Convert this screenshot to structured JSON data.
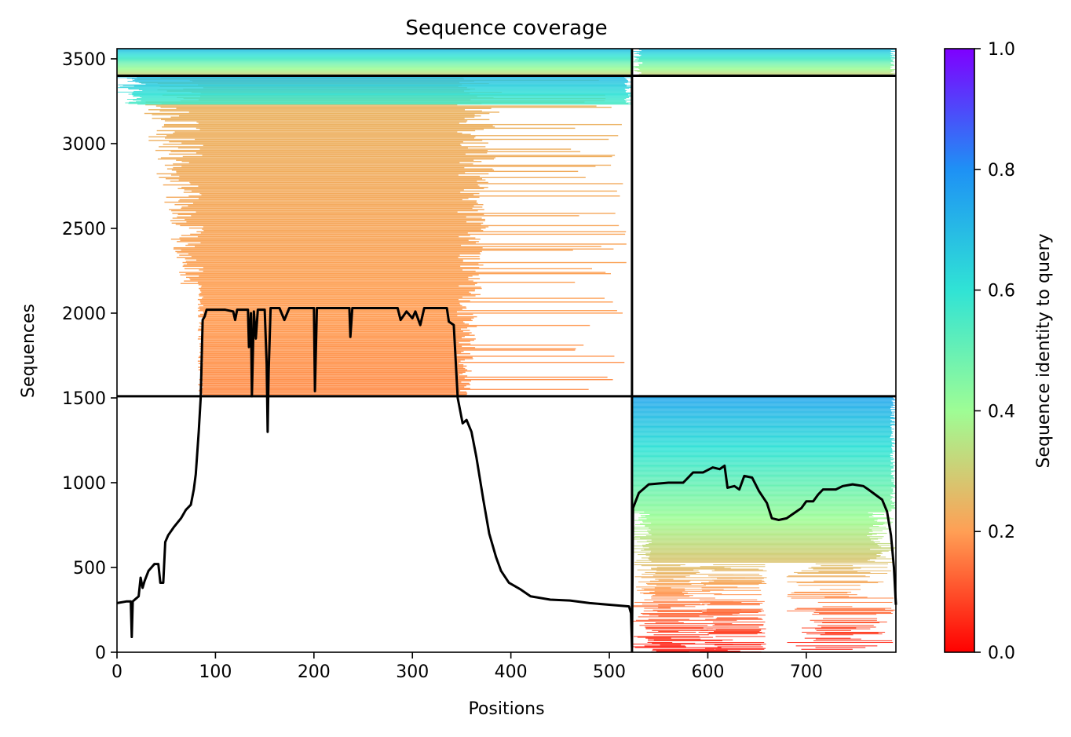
{
  "chart_data": {
    "type": "heatmap",
    "title": "Sequence coverage",
    "xlabel": "Positions",
    "ylabel": "Sequences",
    "xlim": [
      0,
      791
    ],
    "ylim": [
      0,
      3560
    ],
    "x_ticks": [
      0,
      100,
      200,
      300,
      400,
      500,
      600,
      700
    ],
    "y_ticks": [
      0,
      500,
      1000,
      1500,
      2000,
      2500,
      3000,
      3500
    ],
    "colorbar": {
      "label": "Sequence identity to query",
      "colormap": "rainbow_r",
      "range": [
        0,
        1
      ],
      "ticks": [
        "0.0",
        "0.2",
        "0.4",
        "0.6",
        "0.8",
        "1.0"
      ],
      "stops": [
        {
          "v": 0.0,
          "color": "#ff0000"
        },
        {
          "v": 0.2,
          "color": "#ff9f55"
        },
        {
          "v": 0.4,
          "color": "#9efd95"
        },
        {
          "v": 0.6,
          "color": "#30e3d5"
        },
        {
          "v": 0.8,
          "color": "#1e91f5"
        },
        {
          "v": 1.0,
          "color": "#7f00ff"
        }
      ]
    },
    "chain_boundary_x": 523,
    "chain_boundary_y": [
      1510,
      3400
    ],
    "blocks": [
      {
        "name": "chainA-paired",
        "x": [
          0,
          523
        ],
        "y": [
          1510,
          3400
        ],
        "span": [
          88,
          345
        ],
        "tail": [
          345,
          380
        ],
        "identity_bottom": 0.18,
        "identity_top": 0.25
      },
      {
        "name": "chainA-cyan",
        "x": [
          0,
          523
        ],
        "y": [
          3230,
          3400
        ],
        "span": [
          0,
          523
        ],
        "identity_bottom": 0.55,
        "identity_top": 0.7
      },
      {
        "name": "top-strip",
        "x": [
          0,
          791
        ],
        "y": [
          3400,
          3560
        ],
        "span": [
          0,
          791
        ],
        "identity_bottom": 0.3,
        "identity_top": 0.7
      },
      {
        "name": "chainB-paired",
        "x": [
          523,
          791
        ],
        "y": [
          0,
          1510
        ],
        "span": [
          523,
          791
        ],
        "identity_bottom": 0.02,
        "identity_top": 0.75
      }
    ],
    "coverage_line": {
      "color": "#000000",
      "points": [
        [
          0,
          290
        ],
        [
          10,
          300
        ],
        [
          14,
          300
        ],
        [
          15,
          90
        ],
        [
          16,
          300
        ],
        [
          22,
          330
        ],
        [
          24,
          440
        ],
        [
          26,
          380
        ],
        [
          28,
          420
        ],
        [
          32,
          480
        ],
        [
          35,
          500
        ],
        [
          38,
          520
        ],
        [
          42,
          520
        ],
        [
          44,
          410
        ],
        [
          47,
          410
        ],
        [
          49,
          650
        ],
        [
          52,
          690
        ],
        [
          58,
          740
        ],
        [
          65,
          790
        ],
        [
          70,
          840
        ],
        [
          75,
          870
        ],
        [
          78,
          960
        ],
        [
          80,
          1050
        ],
        [
          83,
          1300
        ],
        [
          85,
          1500
        ],
        [
          87,
          1960
        ],
        [
          89,
          1980
        ],
        [
          91,
          2020
        ],
        [
          110,
          2020
        ],
        [
          118,
          2010
        ],
        [
          120,
          1960
        ],
        [
          122,
          2020
        ],
        [
          133,
          2020
        ],
        [
          134,
          1800
        ],
        [
          136,
          2000
        ],
        [
          137,
          1510
        ],
        [
          139,
          2010
        ],
        [
          141,
          1850
        ],
        [
          143,
          2020
        ],
        [
          150,
          2020
        ],
        [
          152,
          1700
        ],
        [
          153,
          1300
        ],
        [
          154,
          1650
        ],
        [
          156,
          2030
        ],
        [
          165,
          2030
        ],
        [
          170,
          1960
        ],
        [
          175,
          2030
        ],
        [
          200,
          2030
        ],
        [
          201,
          1540
        ],
        [
          203,
          2030
        ],
        [
          236,
          2030
        ],
        [
          237,
          1860
        ],
        [
          239,
          2030
        ],
        [
          285,
          2030
        ],
        [
          288,
          1960
        ],
        [
          294,
          2010
        ],
        [
          300,
          1970
        ],
        [
          303,
          2010
        ],
        [
          308,
          1930
        ],
        [
          312,
          2030
        ],
        [
          335,
          2030
        ],
        [
          337,
          1950
        ],
        [
          342,
          1930
        ],
        [
          346,
          1500
        ],
        [
          351,
          1350
        ],
        [
          355,
          1370
        ],
        [
          360,
          1300
        ],
        [
          365,
          1150
        ],
        [
          372,
          900
        ],
        [
          378,
          700
        ],
        [
          385,
          560
        ],
        [
          390,
          480
        ],
        [
          398,
          410
        ],
        [
          410,
          370
        ],
        [
          420,
          330
        ],
        [
          440,
          310
        ],
        [
          460,
          305
        ],
        [
          480,
          290
        ],
        [
          500,
          280
        ],
        [
          520,
          270
        ],
        [
          522,
          230
        ],
        [
          523,
          30
        ],
        [
          524,
          850
        ],
        [
          530,
          940
        ],
        [
          540,
          990
        ],
        [
          560,
          1000
        ],
        [
          575,
          1000
        ],
        [
          585,
          1060
        ],
        [
          595,
          1060
        ],
        [
          605,
          1090
        ],
        [
          612,
          1080
        ],
        [
          617,
          1100
        ],
        [
          620,
          970
        ],
        [
          627,
          980
        ],
        [
          632,
          960
        ],
        [
          637,
          1040
        ],
        [
          645,
          1030
        ],
        [
          652,
          950
        ],
        [
          660,
          880
        ],
        [
          665,
          790
        ],
        [
          672,
          780
        ],
        [
          680,
          790
        ],
        [
          695,
          850
        ],
        [
          700,
          890
        ],
        [
          707,
          890
        ],
        [
          712,
          930
        ],
        [
          717,
          960
        ],
        [
          724,
          960
        ],
        [
          730,
          960
        ],
        [
          737,
          980
        ],
        [
          747,
          990
        ],
        [
          758,
          980
        ],
        [
          763,
          960
        ],
        [
          770,
          930
        ],
        [
          777,
          900
        ],
        [
          782,
          830
        ],
        [
          786,
          690
        ],
        [
          789,
          500
        ],
        [
          791,
          280
        ]
      ]
    }
  }
}
